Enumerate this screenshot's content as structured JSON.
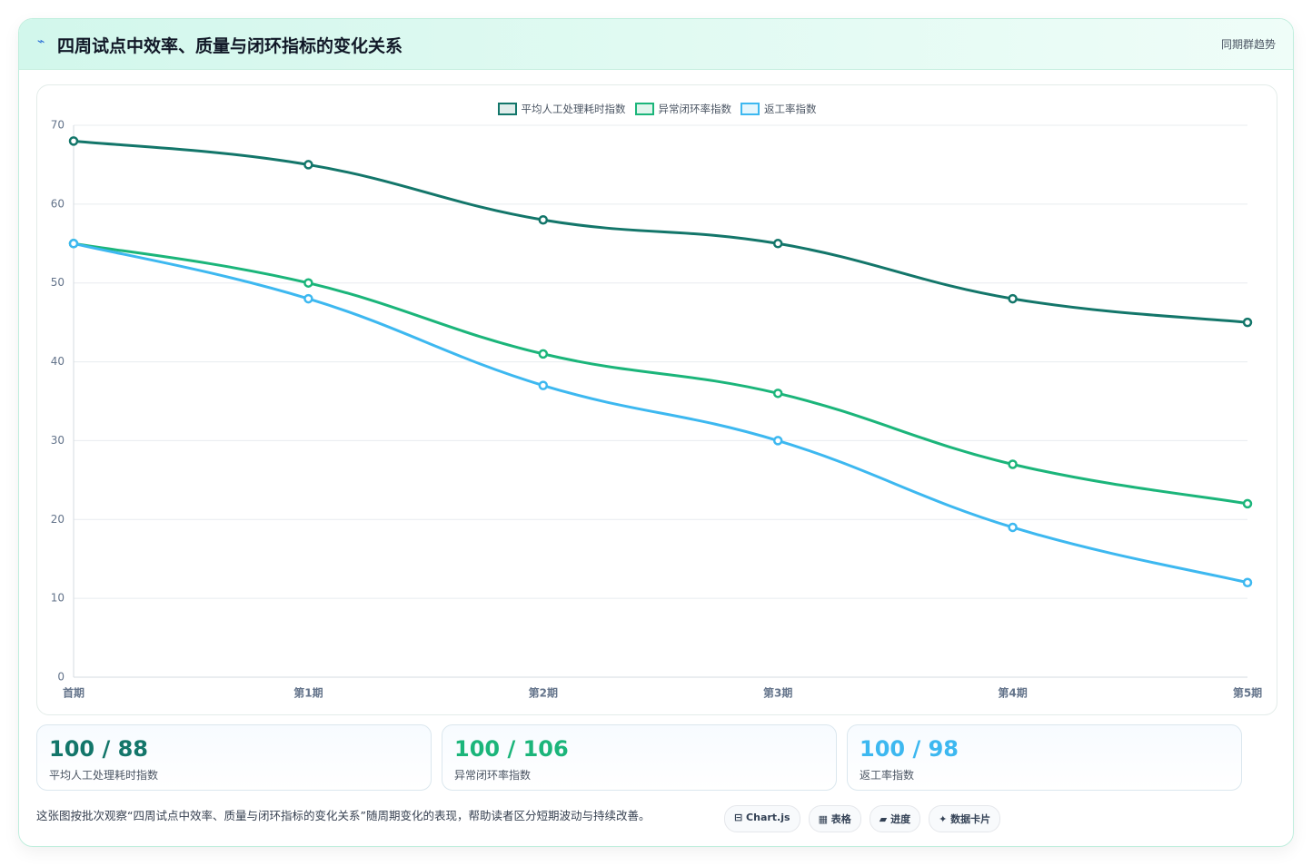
{
  "header": {
    "icon": "⌁",
    "badge": "同期群趋势"
  },
  "chart_data": {
    "type": "line",
    "title": "四周试点中效率、质量与闭环指标的变化关系",
    "categories": [
      "首期",
      "第1期",
      "第2期",
      "第3期",
      "第4期",
      "第5期"
    ],
    "series": [
      {
        "name": "平均人工处理耗时指数",
        "color": "#13766a",
        "values": [
          68,
          65,
          58,
          55,
          48,
          45
        ]
      },
      {
        "name": "异常闭环率指数",
        "color": "#1bb57a",
        "values": [
          55,
          50,
          41,
          36,
          27,
          22
        ]
      },
      {
        "name": "返工率指数",
        "color": "#3db8f0",
        "values": [
          55,
          48,
          37,
          30,
          19,
          12
        ]
      }
    ],
    "ylim": [
      0,
      70
    ],
    "yticks": [
      0,
      10,
      20,
      30,
      40,
      50,
      60,
      70
    ],
    "grid": true,
    "legend": "top"
  },
  "cards": [
    {
      "value": "100 / 88",
      "label": "平均人工处理耗时指数"
    },
    {
      "value": "100 / 106",
      "label": "异常闭环率指数"
    },
    {
      "value": "100 / 98",
      "label": "返工率指数"
    }
  ],
  "note": "这张图按批次观察“四周试点中效率、质量与闭环指标的变化关系”随周期变化的表现，帮助读者区分短期波动与持续改善。",
  "chips": [
    "⊟ Chart.js",
    "▦ 表格",
    "▰ 进度",
    "✦ 数据卡片"
  ]
}
